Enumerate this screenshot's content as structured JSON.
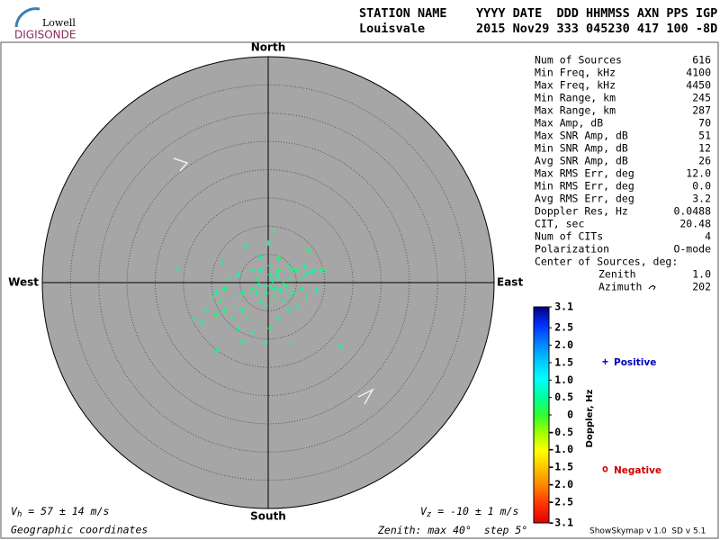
{
  "logo": {
    "top": "Lowell",
    "bottom": "DIGISONDE"
  },
  "header": {
    "columns": "STATION NAME    YYYY DATE  DDD HHMMSS AXN PPS IGP",
    "values": "Louisvale       2015 Nov29 333 045230 417 100 -8D"
  },
  "panel": {
    "stats": [
      {
        "label": "Num of Sources",
        "value": "616"
      },
      {
        "label": "Min Freq, kHz",
        "value": "4100"
      },
      {
        "label": "Max Freq, kHz",
        "value": "4450"
      },
      {
        "label": "Min Range, km",
        "value": "245"
      },
      {
        "label": "Max Range, km",
        "value": "287"
      },
      {
        "label": "Max Amp, dB",
        "value": "70"
      },
      {
        "label": "Max SNR Amp, dB",
        "value": "51"
      },
      {
        "label": "Min SNR Amp, dB",
        "value": "12"
      },
      {
        "label": "Avg SNR Amp, dB",
        "value": "26"
      },
      {
        "label": "Max RMS Err, deg",
        "value": "12.0"
      },
      {
        "label": "Min RMS Err, deg",
        "value": "0.0"
      },
      {
        "label": "Avg RMS Err, deg",
        "value": "3.2"
      },
      {
        "label": "Doppler Res, Hz",
        "value": "0.0488"
      },
      {
        "label": "CIT, sec",
        "value": "20.48"
      },
      {
        "label": "Num of CITs",
        "value": "4"
      },
      {
        "label": "Polarization",
        "value": "O-mode"
      }
    ],
    "center_title": "Center of Sources, deg:",
    "center": [
      {
        "label": "Zenith",
        "value": "1.0"
      },
      {
        "label": "Azimuth",
        "value": "202"
      }
    ],
    "footer": "ShowSkymap v 1.0  SD v 5.1"
  },
  "chart_data": {
    "type": "skymap",
    "directions": {
      "north": "North",
      "south": "South",
      "east": "East",
      "west": "West"
    },
    "zenith_label": "Zenith: max",
    "zenith_max": 40,
    "degree_sign": "°",
    "step_label": "step",
    "zenith_step": 5,
    "coordinates": "Geographic coordinates",
    "velocity_h": {
      "symbol": "V",
      "sub": "h",
      "eq": "=",
      "value": 57,
      "pm": "±",
      "err": 14,
      "unit": "m/s"
    },
    "velocity_z": {
      "symbol": "V",
      "sub": "z",
      "eq": "=",
      "value": -10,
      "pm": "±",
      "err": 1,
      "unit": "m/s"
    },
    "x": [
      0.0,
      1.1,
      -3.8,
      -16.1,
      -8.0,
      7.2,
      9.6,
      7.7,
      1.8,
      -1.3,
      3.5,
      5.1,
      -1.3,
      0.3,
      1.9,
      2.7,
      1.1,
      -0.5,
      -2.1,
      -2.9,
      -4.5,
      -6.1,
      -7.7,
      -9.2,
      -10.0,
      -10.8,
      -13.2,
      -11.6,
      -9.2,
      -7.7,
      -6.1,
      -4.5,
      -3.7,
      -5.3,
      -2.9,
      -0.5,
      0.3,
      1.9,
      3.5,
      5.1,
      6.7,
      5.9,
      4.3,
      2.7,
      1.1,
      -1.3,
      -2.9,
      -5.3,
      -6.9,
      3.5,
      4.3,
      5.9,
      6.7,
      8.3,
      0.3,
      1.9,
      -2.1,
      -0.5,
      -9.2,
      12.8,
      4.1,
      -4.5,
      2.2,
      0.8,
      -0.3,
      3.2,
      1.6,
      -1.6,
      0.3,
      3.8,
      6.4,
      8.6,
      -8.4,
      -6.4
    ],
    "y": [
      7.0,
      9.0,
      6.5,
      2.4,
      3.7,
      5.7,
      2.2,
      1.8,
      4.3,
      4.6,
      3.0,
      2.2,
      2.2,
      1.4,
      0.6,
      -0.2,
      -1.0,
      -0.6,
      0.6,
      -1.0,
      -1.8,
      -2.6,
      -1.0,
      -1.8,
      -2.6,
      -4.9,
      -6.5,
      -7.0,
      -5.7,
      -4.9,
      -4.1,
      -4.9,
      -6.5,
      -8.1,
      -8.9,
      -10.5,
      -8.1,
      -6.5,
      -4.9,
      -4.1,
      -2.6,
      -1.0,
      -1.8,
      -3.3,
      -2.6,
      -3.3,
      2.2,
      1.4,
      0.6,
      0.6,
      2.2,
      0.6,
      1.4,
      2.2,
      3.0,
      2.2,
      -1.8,
      -4.1,
      -12.1,
      -11.2,
      -10.5,
      -10.5,
      -1.3,
      0.3,
      -1.9,
      -0.6,
      1.4,
      -0.3,
      -0.6,
      -2.6,
      2.9,
      -1.3,
      -3.3,
      -6.5
    ],
    "doppler": [
      0.5,
      0.3,
      0.6,
      0.4,
      0.5,
      0.3,
      0.4,
      0.6,
      0.3,
      0.5,
      0.4,
      0.3,
      0.6,
      0.5,
      0.4,
      0.3,
      0.5,
      0.6,
      0.4,
      0.3,
      0.5,
      0.6,
      0.4,
      0.5,
      0.3,
      0.6,
      0.4,
      0.5,
      0.3,
      0.4,
      0.6,
      0.5,
      0.3,
      0.4,
      0.5,
      0.6,
      0.3,
      0.4,
      0.5,
      0.6,
      0.3,
      0.5,
      0.4,
      0.6,
      0.3,
      0.5,
      0.4,
      0.6,
      0.3,
      0.5,
      0.4,
      0.3,
      0.6,
      0.5,
      0.4,
      0.3,
      0.5,
      0.6,
      0.4,
      0.5,
      0.3,
      0.4,
      0.6,
      0.5,
      0.3,
      0.4,
      0.6,
      0.5,
      0.3,
      0.4,
      0.5,
      0.6,
      0.3,
      0.4
    ],
    "colorbar": {
      "label": "Doppler, Hz",
      "ylim": [
        -3.1,
        3.1
      ],
      "yticks": [
        3.1,
        2.5,
        {
          "value": 2,
          "label": "2.0"
        },
        1.5,
        {
          "value": 1,
          "label": "1.0"
        },
        0.5,
        0,
        -0.5,
        {
          "value": -1,
          "label": "-1.0"
        },
        -1.5,
        {
          "value": -2,
          "label": "-2.0"
        },
        -2.5,
        -3.1
      ],
      "colormap": [
        "#000080",
        "#0030ff",
        "#0080ff",
        "#00c8ff",
        "#00ffff",
        "#00ffa0",
        "#30ff30",
        "#a0ff00",
        "#ffff00",
        "#ffc000",
        "#ff8000",
        "#ff3000",
        "#e00000"
      ]
    },
    "legend": {
      "positive": {
        "symbol": "+",
        "label": "Positive",
        "color": "#0000c0"
      },
      "negative": {
        "symbol": "o",
        "label": "Negative",
        "color": "#d00000"
      }
    }
  }
}
